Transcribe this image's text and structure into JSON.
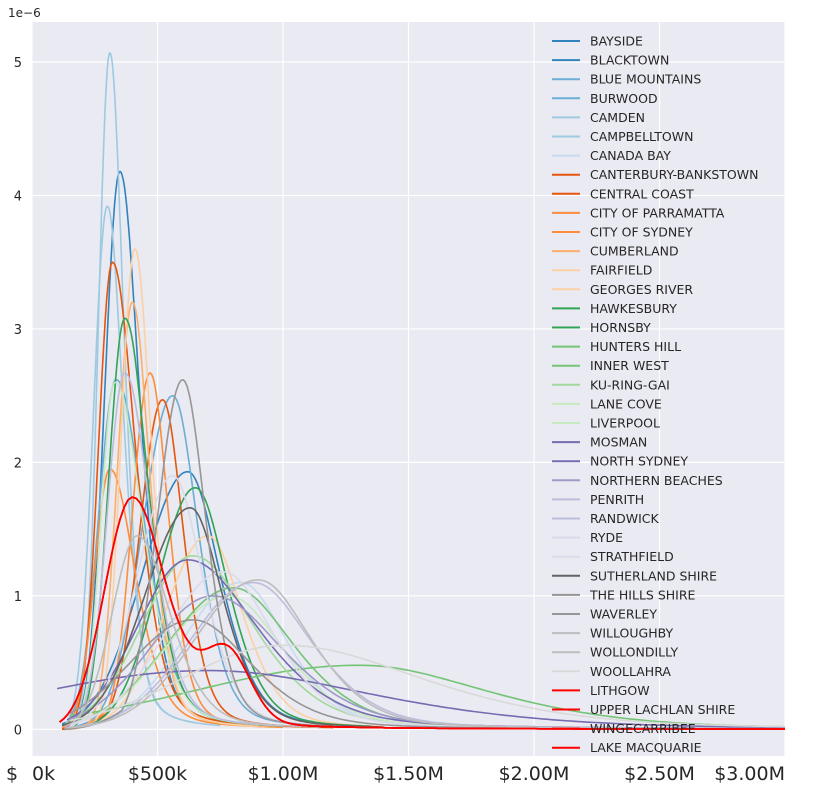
{
  "chart_data": {
    "type": "line",
    "title": "",
    "xlabel": "",
    "ylabel": "",
    "y_scale_label": "1e−6",
    "x_unit_label": "$",
    "xlim": [
      0,
      3000000
    ],
    "ylim": [
      -0.2,
      5.3
    ],
    "x_ticks": [
      {
        "value": 0,
        "label": "0k"
      },
      {
        "value": 500000,
        "label": "$500k"
      },
      {
        "value": 1000000,
        "label": "$1.00M"
      },
      {
        "value": 1500000,
        "label": "$1.50M"
      },
      {
        "value": 2000000,
        "label": "$2.00M"
      },
      {
        "value": 2500000,
        "label": "$2.50M"
      },
      {
        "value": 3000000,
        "label": "$3.00M"
      }
    ],
    "y_ticks": [
      {
        "value": 0,
        "label": "0"
      },
      {
        "value": 1,
        "label": "1"
      },
      {
        "value": 2,
        "label": "2"
      },
      {
        "value": 3,
        "label": "3"
      },
      {
        "value": 4,
        "label": "4"
      },
      {
        "value": 5,
        "label": "5"
      }
    ],
    "grid": true,
    "legend_position": "top-right",
    "series": [
      {
        "name": "BAYSIDE",
        "color": "#3182bd",
        "peak_x": 620000,
        "peak_y": 1.93,
        "width_left": 180000,
        "width_right": 140000,
        "x_start": 120000,
        "x_end": 1130000,
        "left_ratio": 0.2
      },
      {
        "name": "BLACKTOWN",
        "color": "#3182bd",
        "peak_x": 350000,
        "peak_y": 4.18,
        "width_left": 60000,
        "width_right": 85000,
        "x_start": 140000,
        "x_end": 900000,
        "left_ratio": 0.1
      },
      {
        "name": "BLUE MOUNTAINS",
        "color": "#6baed6",
        "peak_x": 335000,
        "peak_y": 2.62,
        "width_left": 70000,
        "width_right": 120000,
        "x_start": 120000,
        "x_end": 900000,
        "left_ratio": 0.2
      },
      {
        "name": "BURWOOD",
        "color": "#6baed6",
        "peak_x": 560000,
        "peak_y": 2.5,
        "width_left": 120000,
        "width_right": 110000,
        "x_start": 120000,
        "x_end": 1350000,
        "left_ratio": 0.2
      },
      {
        "name": "CAMDEN",
        "color": "#9ecae1",
        "peak_x": 310000,
        "peak_y": 5.07,
        "width_left": 45000,
        "width_right": 60000,
        "x_start": 130000,
        "x_end": 650000,
        "left_ratio": 0.1
      },
      {
        "name": "CAMPBELLTOWN",
        "color": "#9ecae1",
        "peak_x": 300000,
        "peak_y": 3.92,
        "width_left": 55000,
        "width_right": 70000,
        "x_start": 130000,
        "x_end": 750000,
        "left_ratio": 0.1
      },
      {
        "name": "CANADA BAY",
        "color": "#c6dbef",
        "peak_x": 830000,
        "peak_y": 1.1,
        "width_left": 230000,
        "width_right": 200000,
        "x_start": 200000,
        "x_end": 1800000,
        "left_ratio": 0.2
      },
      {
        "name": "CANTERBURY-BANKSTOWN",
        "color": "#e6550d",
        "peak_x": 520000,
        "peak_y": 2.47,
        "width_left": 90000,
        "width_right": 90000,
        "x_start": 120000,
        "x_end": 1200000,
        "left_ratio": 0.2
      },
      {
        "name": "CENTRAL COAST",
        "color": "#e6550d",
        "peak_x": 320000,
        "peak_y": 3.5,
        "width_left": 55000,
        "width_right": 100000,
        "x_start": 120000,
        "x_end": 1150000,
        "left_ratio": 0.1
      },
      {
        "name": "CITY OF PARRAMATTA",
        "color": "#fd8d3c",
        "peak_x": 470000,
        "peak_y": 2.67,
        "width_left": 70000,
        "width_right": 80000,
        "x_start": 130000,
        "x_end": 1000000,
        "left_ratio": 0.2
      },
      {
        "name": "CITY OF SYDNEY",
        "color": "#fd8d3c",
        "peak_x": 310000,
        "peak_y": 1.95,
        "width_left": 60000,
        "width_right": 110000,
        "x_start": 120000,
        "x_end": 1000000,
        "left_ratio": 0.2
      },
      {
        "name": "CUMBERLAND",
        "color": "#fdae6b",
        "peak_x": 400000,
        "peak_y": 3.2,
        "width_left": 60000,
        "width_right": 75000,
        "x_start": 140000,
        "x_end": 950000,
        "left_ratio": 0.1
      },
      {
        "name": "FAIRFIELD",
        "color": "#fdd0a2",
        "peak_x": 410000,
        "peak_y": 3.6,
        "width_left": 55000,
        "width_right": 70000,
        "x_start": 150000,
        "x_end": 900000,
        "left_ratio": 0.1
      },
      {
        "name": "GEORGES RIVER",
        "color": "#fdd0a2",
        "peak_x": 700000,
        "peak_y": 1.45,
        "width_left": 170000,
        "width_right": 150000,
        "x_start": 150000,
        "x_end": 1400000,
        "left_ratio": 0.2
      },
      {
        "name": "HAWKESBURY",
        "color": "#31a354",
        "peak_x": 650000,
        "peak_y": 1.81,
        "width_left": 150000,
        "width_right": 140000,
        "x_start": 130000,
        "x_end": 1350000,
        "left_ratio": 0.2
      },
      {
        "name": "HORNSBY",
        "color": "#31a354",
        "peak_x": 370000,
        "peak_y": 3.08,
        "width_left": 65000,
        "width_right": 100000,
        "x_start": 130000,
        "x_end": 1000000,
        "left_ratio": 0.1
      },
      {
        "name": "HUNTERS HILL",
        "color": "#74c476",
        "peak_x": 1300000,
        "peak_y": 0.48,
        "width_left": 650000,
        "width_right": 550000,
        "x_start": 150000,
        "x_end": 3000000,
        "left_ratio": 0.3
      },
      {
        "name": "INNER WEST",
        "color": "#74c476",
        "peak_x": 800000,
        "peak_y": 1.06,
        "width_left": 260000,
        "width_right": 260000,
        "x_start": 130000,
        "x_end": 2000000,
        "left_ratio": 0.2
      },
      {
        "name": "KU-RING-GAI",
        "color": "#a1d99b",
        "peak_x": 640000,
        "peak_y": 1.3,
        "width_left": 200000,
        "width_right": 260000,
        "x_start": 150000,
        "x_end": 2200000,
        "left_ratio": 0.2
      },
      {
        "name": "LANE COVE",
        "color": "#c7e9c0",
        "peak_x": 780000,
        "peak_y": 1.0,
        "width_left": 250000,
        "width_right": 240000,
        "x_start": 150000,
        "x_end": 2000000,
        "left_ratio": 0.2
      },
      {
        "name": "LIVERPOOL",
        "color": "#c7e9c0",
        "peak_x": 330000,
        "peak_y": 2.6,
        "width_left": 55000,
        "width_right": 120000,
        "x_start": 130000,
        "x_end": 1000000,
        "left_ratio": 0.1
      },
      {
        "name": "MOSMAN",
        "color": "#756bb1",
        "peak_x": 700000,
        "peak_y": 0.44,
        "width_left": 700000,
        "width_right": 700000,
        "x_start": 100000,
        "x_end": 3000000,
        "left_ratio": 0.5
      },
      {
        "name": "NORTH SYDNEY",
        "color": "#756bb1",
        "peak_x": 620000,
        "peak_y": 1.27,
        "width_left": 200000,
        "width_right": 300000,
        "x_start": 140000,
        "x_end": 3000000,
        "left_ratio": 0.2
      },
      {
        "name": "NORTHERN BEACHES",
        "color": "#9e9ac8",
        "peak_x": 720000,
        "peak_y": 1.0,
        "width_left": 250000,
        "width_right": 300000,
        "x_start": 150000,
        "x_end": 3000000,
        "left_ratio": 0.2
      },
      {
        "name": "PENRITH",
        "color": "#bcbddc",
        "peak_x": 370000,
        "peak_y": 2.67,
        "width_left": 70000,
        "width_right": 110000,
        "x_start": 130000,
        "x_end": 1000000,
        "left_ratio": 0.1
      },
      {
        "name": "RANDWICK",
        "color": "#bcbddc",
        "peak_x": 880000,
        "peak_y": 1.1,
        "width_left": 250000,
        "width_right": 250000,
        "x_start": 150000,
        "x_end": 3000000,
        "left_ratio": 0.2
      },
      {
        "name": "RYDE",
        "color": "#dadaeb",
        "peak_x": 560000,
        "peak_y": 1.9,
        "width_left": 140000,
        "width_right": 130000,
        "x_start": 150000,
        "x_end": 1300000,
        "left_ratio": 0.2
      },
      {
        "name": "STRATHFIELD",
        "color": "#dadaeb",
        "peak_x": 760000,
        "peak_y": 1.18,
        "width_left": 230000,
        "width_right": 220000,
        "x_start": 150000,
        "x_end": 1800000,
        "left_ratio": 0.2
      },
      {
        "name": "SUTHERLAND SHIRE",
        "color": "#636363",
        "peak_x": 630000,
        "peak_y": 1.66,
        "width_left": 180000,
        "width_right": 140000,
        "x_start": 120000,
        "x_end": 1400000,
        "left_ratio": 0.2
      },
      {
        "name": "THE HILLS SHIRE",
        "color": "#969696",
        "peak_x": 640000,
        "peak_y": 0.82,
        "width_left": 250000,
        "width_right": 250000,
        "x_start": 150000,
        "x_end": 2000000,
        "left_ratio": 0.2
      },
      {
        "name": "WAVERLEY",
        "color": "#969696",
        "peak_x": 600000,
        "peak_y": 2.62,
        "width_left": 100000,
        "width_right": 100000,
        "x_start": 130000,
        "x_end": 1700000,
        "left_ratio": 0.2
      },
      {
        "name": "WILLOUGHBY",
        "color": "#bdbdbd",
        "peak_x": 900000,
        "peak_y": 1.12,
        "width_left": 250000,
        "width_right": 230000,
        "x_start": 150000,
        "x_end": 3000000,
        "left_ratio": 0.2
      },
      {
        "name": "WOLLONDILLY",
        "color": "#bdbdbd",
        "peak_x": 420000,
        "peak_y": 1.45,
        "width_left": 100000,
        "width_right": 140000,
        "x_start": 130000,
        "x_end": 1150000,
        "left_ratio": 0.2
      },
      {
        "name": "WOOLLAHRA",
        "color": "#d9d9d9",
        "peak_x": 1000000,
        "peak_y": 0.63,
        "width_left": 400000,
        "width_right": 600000,
        "x_start": 150000,
        "x_end": 3000000,
        "left_ratio": 0.2
      },
      {
        "name": "LITHGOW",
        "color": "#ff0000",
        "peak_x": 400000,
        "peak_y": 1.74,
        "width_left": 110000,
        "width_right": 150000,
        "x_start": 110000,
        "x_end": 3000000,
        "left_ratio": 0.1,
        "bump_x": 780000,
        "bump_y": 0.5,
        "bump_w": 90000
      },
      {
        "name": "UPPER LACHLAN SHIRE",
        "color": "#ff0000",
        "peak_x": 400000,
        "peak_y": 1.74,
        "width_left": 110000,
        "width_right": 150000,
        "x_start": 110000,
        "x_end": 3000000,
        "left_ratio": 0.1,
        "bump_x": 780000,
        "bump_y": 0.5,
        "bump_w": 90000
      },
      {
        "name": "WINGECARRIBEE",
        "color": "#ff0000",
        "peak_x": 400000,
        "peak_y": 1.74,
        "width_left": 110000,
        "width_right": 150000,
        "x_start": 110000,
        "x_end": 3000000,
        "left_ratio": 0.1,
        "bump_x": 780000,
        "bump_y": 0.5,
        "bump_w": 90000
      },
      {
        "name": "LAKE MACQUARIE",
        "color": "#ff0000",
        "peak_x": 400000,
        "peak_y": 1.74,
        "width_left": 110000,
        "width_right": 150000,
        "x_start": 110000,
        "x_end": 3000000,
        "left_ratio": 0.1,
        "bump_x": 780000,
        "bump_y": 0.5,
        "bump_w": 90000
      }
    ]
  }
}
